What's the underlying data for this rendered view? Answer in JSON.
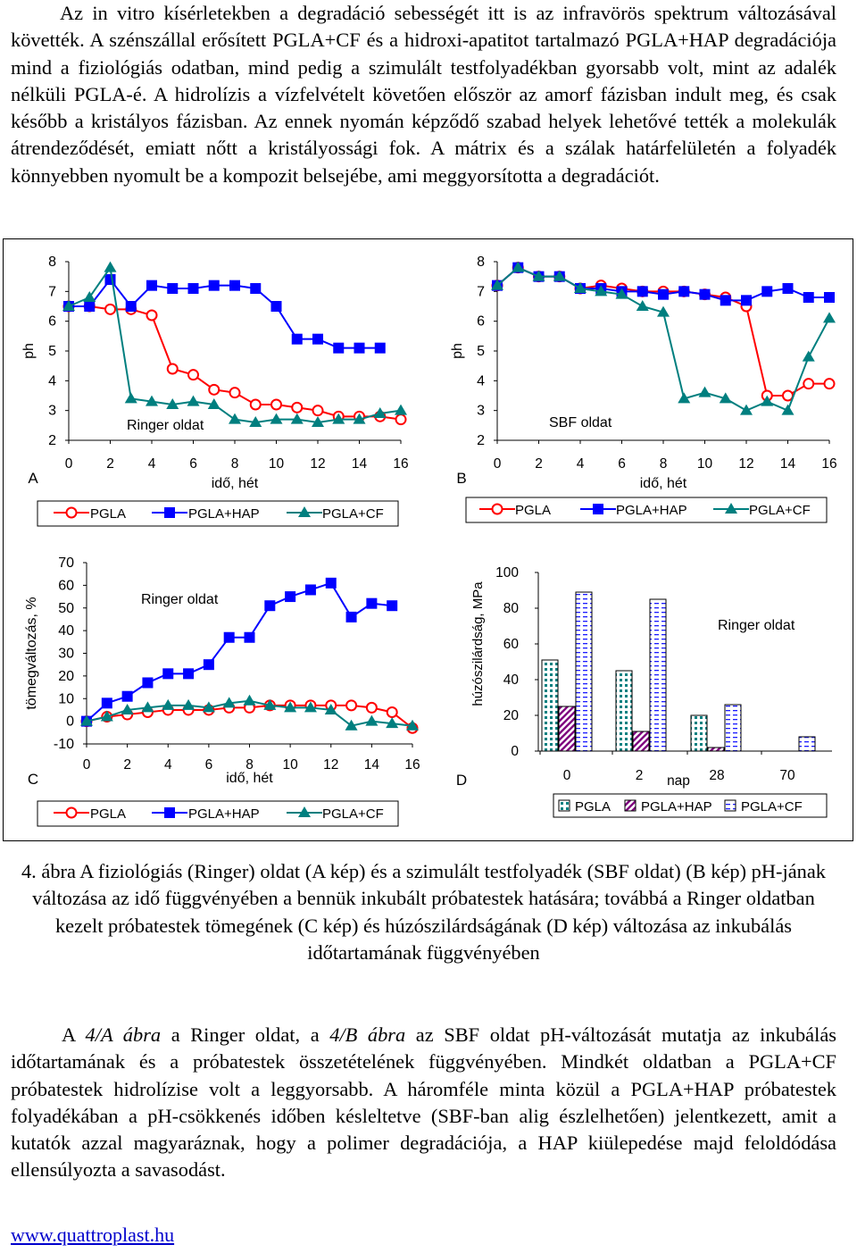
{
  "paragraph1": "Az in vitro kísérletekben a degradáció sebességét itt is az infravörös spektrum változásával követték. A szénszállal erősített PGLA+CF és a hidroxi-apatitot tartalmazó PGLA+HAP degradációja mind a fiziológiás odatban, mind pedig a szimulált testfolyadékban gyorsabb volt, mint az adalék nélküli PGLA-é. A hidrolízis a vízfelvételt követően először az amorf fázisban indult meg, és csak később a kristályos fázisban. Az ennek nyomán képződő szabad helyek lehetővé tették a molekulák átrendeződését, emiatt nőtt a kristályossági fok. A mátrix és a szálak határfelületén a folyadék könnyebben nyomult be a kompozit belsejébe, ami meggyorsította a degradációt.",
  "caption": "4. ábra A fiziológiás (Ringer) oldat (A kép) és a szimulált testfolyadék (SBF oldat) (B kép) pH-jának változása az idő függvényében a bennük inkubált próbatestek hatására; továbbá a Ringer oldatban kezelt próbatestek tömegének (C kép) és húzószilárdságának (D kép) változása az inkubálás időtartamának függvényében",
  "paragraph3": {
    "t1": "A ",
    "i1": "4/A ábra",
    "t2": " a Ringer oldat, a ",
    "i2": "4/B ábra",
    "t3": " az SBF oldat pH-változását mutatja az inkubálás időtartamának és a próbatestek összetételének függvényében. Mindkét oldatban a PGLA+CF próbatestek hidrolízise volt a leggyorsabb. A háromféle minta közül a PGLA+HAP próbatestek folyadékában a pH-csökkenés időben késleltetve (SBF-ban alig észlelhetően) jelentkezett, amit a kutatók azzal magyaráznak, hogy a polimer degradációja, a HAP kiülepedése majd feloldódása ellensúlyozta a savasodást."
  },
  "footer_link": "www.quattroplast.hu",
  "colors": {
    "PGLA": "#ff0000",
    "PGLA+HAP": "#0000ff",
    "PGLA+CF": "#007f7f"
  },
  "chart_data": [
    {
      "panel": "A",
      "type": "line",
      "annotation": "Ringer oldat",
      "xlabel": "idő, hét",
      "ylabel": "ph",
      "xlim": [
        0,
        16
      ],
      "ylim": [
        2,
        8
      ],
      "xticks": [
        0,
        2,
        4,
        6,
        8,
        10,
        12,
        14,
        16
      ],
      "yticks": [
        2,
        3,
        4,
        5,
        6,
        7,
        8
      ],
      "series": [
        {
          "name": "PGLA",
          "marker": "circle",
          "x": [
            0,
            1,
            2,
            3,
            4,
            5,
            6,
            7,
            8,
            9,
            10,
            11,
            12,
            13,
            14,
            15,
            16
          ],
          "y": [
            6.5,
            6.5,
            6.4,
            6.4,
            6.2,
            4.4,
            4.2,
            3.7,
            3.6,
            3.2,
            3.2,
            3.1,
            3.0,
            2.8,
            2.8,
            2.8,
            2.7
          ]
        },
        {
          "name": "PGLA+HAP",
          "marker": "square",
          "x": [
            0,
            1,
            2,
            3,
            4,
            5,
            6,
            7,
            8,
            9,
            10,
            11,
            12,
            13,
            14,
            15
          ],
          "y": [
            6.5,
            6.5,
            7.4,
            6.5,
            7.2,
            7.1,
            7.1,
            7.2,
            7.2,
            7.1,
            6.5,
            5.4,
            5.4,
            5.1,
            5.1,
            5.1
          ]
        },
        {
          "name": "PGLA+CF",
          "marker": "triangle",
          "x": [
            0,
            1,
            2,
            3,
            4,
            5,
            6,
            7,
            8,
            9,
            10,
            11,
            12,
            13,
            14,
            15,
            16
          ],
          "y": [
            6.5,
            6.8,
            7.8,
            3.4,
            3.3,
            3.2,
            3.3,
            3.2,
            2.7,
            2.6,
            2.7,
            2.7,
            2.6,
            2.7,
            2.7,
            2.9,
            3.0
          ]
        }
      ]
    },
    {
      "panel": "B",
      "type": "line",
      "annotation": "SBF oldat",
      "xlabel": "idő, hét",
      "ylabel": "ph",
      "xlim": [
        0,
        16
      ],
      "ylim": [
        2,
        8
      ],
      "xticks": [
        0,
        2,
        4,
        6,
        8,
        10,
        12,
        14,
        16
      ],
      "yticks": [
        2,
        3,
        4,
        5,
        6,
        7,
        8
      ],
      "series": [
        {
          "name": "PGLA",
          "marker": "circle",
          "x": [
            0,
            1,
            2,
            3,
            4,
            5,
            6,
            7,
            8,
            9,
            10,
            11,
            12,
            13,
            14,
            15,
            16
          ],
          "y": [
            7.2,
            7.8,
            7.5,
            7.5,
            7.1,
            7.2,
            7.1,
            7.0,
            7.0,
            7.0,
            6.9,
            6.8,
            6.5,
            3.5,
            3.5,
            3.9,
            3.9
          ]
        },
        {
          "name": "PGLA+HAP",
          "marker": "square",
          "x": [
            0,
            1,
            2,
            3,
            4,
            5,
            6,
            7,
            8,
            9,
            10,
            11,
            12,
            13,
            14,
            15,
            16
          ],
          "y": [
            7.2,
            7.8,
            7.5,
            7.5,
            7.1,
            7.1,
            7.0,
            7.0,
            6.9,
            7.0,
            6.9,
            6.7,
            6.7,
            7.0,
            7.1,
            6.8,
            6.8
          ]
        },
        {
          "name": "PGLA+CF",
          "marker": "triangle",
          "x": [
            0,
            1,
            2,
            3,
            4,
            5,
            6,
            7,
            8,
            9,
            10,
            11,
            12,
            13,
            14,
            15,
            16
          ],
          "y": [
            7.2,
            7.8,
            7.5,
            7.5,
            7.1,
            7.0,
            6.9,
            6.5,
            6.3,
            3.4,
            3.6,
            3.4,
            3.0,
            3.3,
            3.0,
            4.8,
            6.1
          ]
        }
      ]
    },
    {
      "panel": "C",
      "type": "line",
      "annotation": "Ringer oldat",
      "xlabel": "idő, hét",
      "ylabel": "tömegváltozás, %",
      "xlim": [
        0,
        16
      ],
      "ylim": [
        -10,
        70
      ],
      "xticks": [
        0,
        2,
        4,
        6,
        8,
        10,
        12,
        14,
        16
      ],
      "yticks": [
        -10,
        0,
        10,
        20,
        30,
        40,
        50,
        60,
        70
      ],
      "series": [
        {
          "name": "PGLA",
          "marker": "circle",
          "x": [
            0,
            1,
            2,
            3,
            4,
            5,
            6,
            7,
            8,
            9,
            10,
            11,
            12,
            13,
            14,
            15,
            16
          ],
          "y": [
            0,
            2,
            3,
            4,
            5,
            5,
            5,
            6,
            6,
            7,
            7,
            7,
            7,
            7,
            6,
            4,
            -3
          ]
        },
        {
          "name": "PGLA+HAP",
          "marker": "square",
          "x": [
            0,
            1,
            2,
            3,
            4,
            5,
            6,
            7,
            8,
            9,
            10,
            11,
            12,
            13,
            14,
            15
          ],
          "y": [
            0,
            8,
            11,
            17,
            21,
            21,
            25,
            37,
            37,
            51,
            55,
            58,
            61,
            46,
            52,
            51
          ]
        },
        {
          "name": "PGLA+CF",
          "marker": "triangle",
          "x": [
            0,
            1,
            2,
            3,
            4,
            5,
            6,
            7,
            8,
            9,
            10,
            11,
            12,
            13,
            14,
            15,
            16
          ],
          "y": [
            0,
            2,
            5,
            6,
            7,
            7,
            6,
            8,
            9,
            7,
            6,
            6,
            5,
            -2,
            0,
            -1,
            -2
          ]
        }
      ]
    },
    {
      "panel": "D",
      "type": "bar",
      "annotation": "Ringer oldat",
      "xlabel": "nap",
      "ylabel": "húzószilárdság, MPa",
      "ylim": [
        0,
        100
      ],
      "yticks": [
        0,
        20,
        40,
        60,
        80,
        100
      ],
      "categories": [
        "0",
        "2",
        "28",
        "70"
      ],
      "series": [
        {
          "name": "PGLA",
          "values": [
            51,
            45,
            20,
            0
          ]
        },
        {
          "name": "PGLA+HAP",
          "values": [
            25,
            11,
            2,
            0
          ]
        },
        {
          "name": "PGLA+CF",
          "values": [
            89,
            85,
            26,
            8
          ]
        }
      ]
    }
  ]
}
